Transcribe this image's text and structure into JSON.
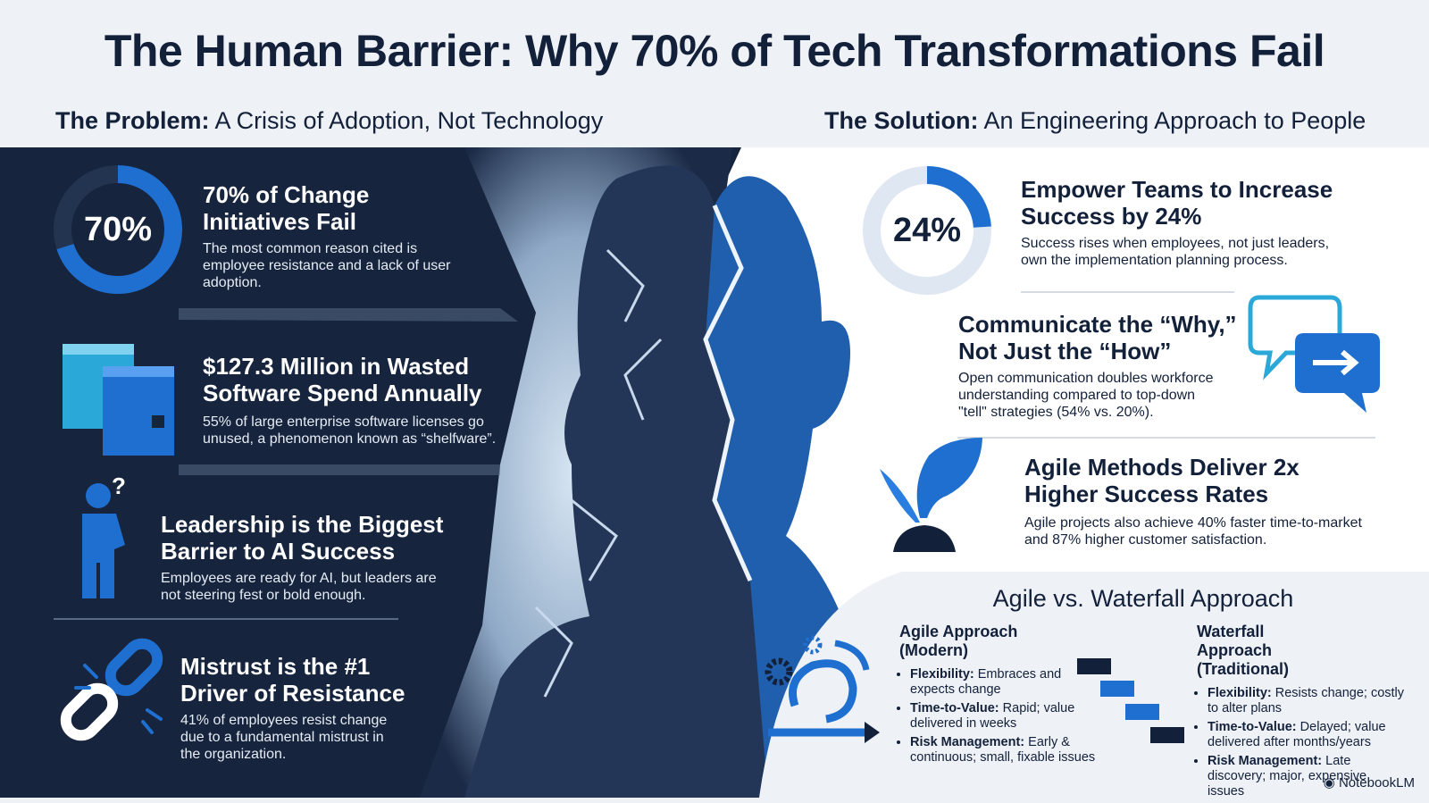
{
  "header": {
    "title": "The Human Barrier: Why 70% of Tech Transformations Fail",
    "problem_heading": "The Problem:",
    "problem_sub": "A Crisis of Adoption, Not Technology",
    "solution_heading": "The Solution:",
    "solution_sub": "An Engineering Approach to People"
  },
  "problems": [
    {
      "ring_value": 70,
      "ring_label": "70%",
      "title": "70% of Change Initiatives Fail",
      "text": "The most common reason cited is employee resistance and a lack of user adoption."
    },
    {
      "title": "$127.3 Million in Wasted Software Spend Annually",
      "text": "55% of large enterprise software licenses go unused, a phenomenon known as “shelfware”."
    },
    {
      "title": "Leadership is the Biggest Barrier to AI Success",
      "text": "Employees are ready for AI, but leaders are not steering fest or bold enough."
    },
    {
      "title": "Mistrust is the #1 Driver of Resistance",
      "text": "41% of employees resist change due to a fundamental mistrust in the organization."
    }
  ],
  "solutions": [
    {
      "ring_value": 24,
      "ring_label": "24%",
      "title": "Empower Teams to Increase Success by 24%",
      "text": "Success rises when employees, not just leaders, own the implementation planning process."
    },
    {
      "title": "Communicate the “Why,” Not Just the “How”",
      "text": "Open communication doubles workforce understanding compared to top-down \"tell\" strategies (54% vs. 20%)."
    },
    {
      "title": "Agile Methods Deliver 2x Higher Success Rates",
      "text": "Agile projects also achieve 40% faster time-to-market and 87% higher customer satisfaction."
    }
  ],
  "comparison": {
    "title": "Agile vs. Waterfall Approach",
    "columns": [
      {
        "title": "Agile Approach (Modern)",
        "items": [
          {
            "label": "Flexibility:",
            "text": "Embraces and expects change"
          },
          {
            "label": "Time-to-Value:",
            "text": "Rapid; value delivered in weeks"
          },
          {
            "label": "Risk Management:",
            "text": "Early & continuous; small, fixable issues"
          }
        ]
      },
      {
        "title": "Waterfall Approach (Traditional)",
        "items": [
          {
            "label": "Flexibility:",
            "text": "Resists change; costly to alter plans"
          },
          {
            "label": "Time-to-Value:",
            "text": "Delayed; value delivered after months/years"
          },
          {
            "label": "Risk Management:",
            "text": "Late discovery; major, expensive issues"
          }
        ]
      }
    ]
  },
  "footer": "NotebookLM"
}
